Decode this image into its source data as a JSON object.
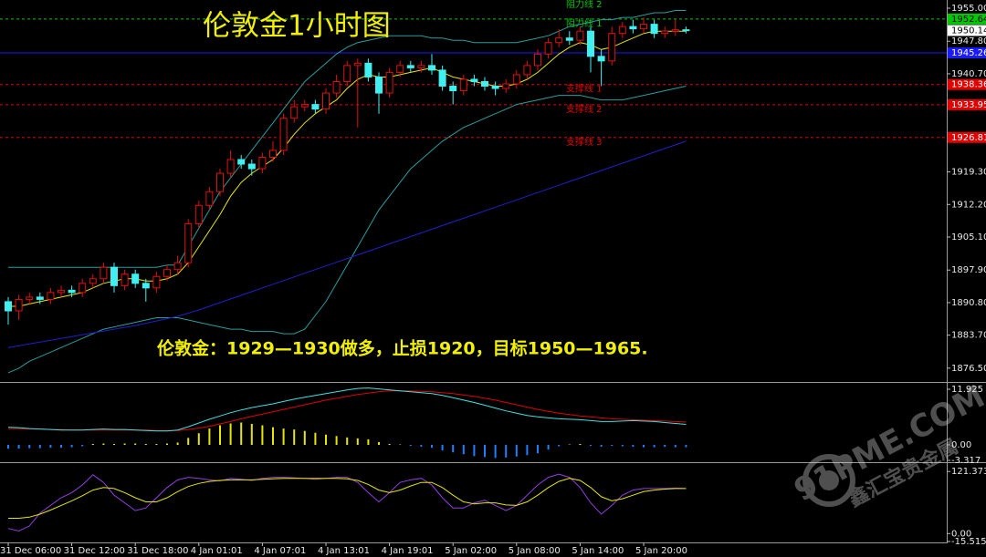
{
  "chart_data": [
    {
      "type": "candlestick",
      "title": "伦敦金1小时图",
      "annotation": "伦敦金：1929—1930做多，止损1920，目标1950—1965.",
      "categories": [
        "31 Dec 06:00",
        null,
        null,
        null,
        null,
        null,
        "31 Dec 12:00",
        null,
        null,
        null,
        null,
        null,
        "31 Dec 18:00",
        null,
        null,
        null,
        null,
        null,
        "4 Jan 01:01",
        null,
        null,
        null,
        null,
        null,
        "4 Jan 07:01",
        null,
        null,
        null,
        null,
        null,
        "4 Jan 13:01",
        null,
        null,
        null,
        null,
        null,
        "4 Jan 19:01",
        null,
        null,
        null,
        null,
        null,
        "5 Jan 02:00",
        null,
        null,
        null,
        null,
        null,
        "5 Jan 08:00",
        null,
        null,
        null,
        null,
        null,
        "5 Jan 14:00",
        null,
        null,
        null,
        null,
        null,
        "5 Jan 20:00",
        null,
        null,
        null,
        null
      ],
      "open": [
        1891,
        1889,
        1891.5,
        1892,
        1891.5,
        1893,
        1893.5,
        1893,
        1895,
        1896,
        1898.5,
        1894.5,
        1897,
        1895,
        1894,
        1896.5,
        1898,
        1899.5,
        1908,
        1912,
        1915,
        1919,
        1922,
        1921,
        1920,
        1922.5,
        1924,
        1931,
        1933.5,
        1934,
        1933,
        1936.5,
        1939,
        1942.5,
        1943,
        1940,
        1936.5,
        1941,
        1942.5,
        1942,
        1942.5,
        1941.5,
        1938,
        1937,
        1939.5,
        1939,
        1938,
        1937.5,
        1938.5,
        1940.5,
        1942.5,
        1945,
        1947.5,
        1948.5,
        1948,
        1950,
        1944.5,
        1943.5,
        1949.5,
        1951,
        1950.5,
        1951.5,
        1949.5,
        1950,
        1950.3
      ],
      "high": [
        1892,
        1892.5,
        1893,
        1893,
        1894,
        1894.5,
        1894.5,
        1896,
        1897,
        1899.5,
        1899.5,
        1898,
        1898,
        1896,
        1897.5,
        1899,
        1901,
        1909,
        1913,
        1916,
        1920,
        1924,
        1923,
        1922,
        1923.5,
        1926,
        1932,
        1935,
        1935,
        1935,
        1937.5,
        1940.5,
        1943.5,
        1944,
        1944,
        1941,
        1942,
        1943.5,
        1943.5,
        1943.5,
        1945,
        1942.5,
        1939,
        1940.5,
        1940.5,
        1940,
        1939,
        1939.5,
        1941.5,
        1943.5,
        1946,
        1948.5,
        1950.5,
        1950,
        1951,
        1951,
        1946,
        1951,
        1952,
        1952.5,
        1953,
        1952.5,
        1951,
        1952.5,
        1951
      ],
      "low": [
        1886,
        1887,
        1890.5,
        1890.5,
        1890.5,
        1892,
        1892,
        1892,
        1894,
        1895,
        1893,
        1893.5,
        1894,
        1891,
        1893,
        1895.5,
        1897,
        1898.5,
        1907,
        1911,
        1914,
        1918,
        1920,
        1918.5,
        1919,
        1921.5,
        1923,
        1930,
        1932.5,
        1932,
        1932,
        1935.5,
        1938,
        1929,
        1939,
        1932,
        1935.5,
        1940,
        1941,
        1941,
        1940.5,
        1937,
        1934,
        1936,
        1938,
        1937,
        1936,
        1936.5,
        1937.5,
        1939.5,
        1941.5,
        1944,
        1946.5,
        1947,
        1947,
        1941,
        1938,
        1942.5,
        1948.5,
        1949.5,
        1949.5,
        1948.5,
        1948.5,
        1949,
        1949.5
      ],
      "close": [
        1889,
        1891.5,
        1892,
        1891.5,
        1893,
        1893.5,
        1893,
        1895,
        1896,
        1898.5,
        1894.5,
        1897,
        1895,
        1894,
        1896.5,
        1898,
        1899.5,
        1908,
        1912,
        1915,
        1919,
        1922,
        1921,
        1920,
        1922.5,
        1924,
        1931,
        1933.5,
        1934,
        1933,
        1936.5,
        1939,
        1942.5,
        1943,
        1940,
        1936.5,
        1941,
        1942.5,
        1942,
        1942.5,
        1941.5,
        1938,
        1937,
        1939.5,
        1939,
        1938,
        1937.5,
        1938.5,
        1940.5,
        1942.5,
        1945,
        1947.5,
        1948.5,
        1948,
        1950,
        1944.5,
        1943.5,
        1949.5,
        1951,
        1950.5,
        1951.5,
        1949.5,
        1950,
        1950.3,
        1950.14
      ],
      "up_color": "#e01010",
      "down_color": "#40f0f0",
      "series": [
        {
          "color": "#2a9d9d",
          "values": [
            1898.5,
            1898.5,
            1898.5,
            1898.5,
            1898.5,
            1898.5,
            1898.5,
            1898.5,
            1898.5,
            1898.5,
            1898.5,
            1898.5,
            1898.5,
            1898.5,
            1898.5,
            1899,
            1899,
            1903,
            1907,
            1911,
            1915,
            1918,
            1921,
            1924,
            1927,
            1930,
            1933,
            1936,
            1939,
            1941,
            1943,
            1945,
            1946.5,
            1947.5,
            1948,
            1948.5,
            1949,
            1949,
            1949,
            1949,
            1948.5,
            1948.5,
            1948,
            1948,
            1947.5,
            1947.5,
            1947.5,
            1947.5,
            1947.5,
            1948,
            1948.5,
            1949,
            1950,
            1951,
            1951.5,
            1952,
            1952.5,
            1952.5,
            1953,
            1953,
            1953.5,
            1954,
            1954,
            1954.5,
            1954.5
          ]
        },
        {
          "color": "#2a9d9d",
          "values": [
            1875.5,
            1876.5,
            1878,
            1879,
            1880,
            1881,
            1882,
            1883,
            1884,
            1885,
            1885.5,
            1886,
            1886.5,
            1887,
            1887.5,
            1887.5,
            1887.5,
            1887,
            1886.5,
            1886,
            1885.5,
            1885,
            1885,
            1884.5,
            1884.5,
            1884.5,
            1884,
            1884,
            1885,
            1888,
            1891,
            1895,
            1899,
            1903,
            1907,
            1911,
            1914,
            1917,
            1920,
            1922,
            1924,
            1926,
            1927.5,
            1929,
            1930,
            1931,
            1932,
            1933,
            1934,
            1934.5,
            1935,
            1935.5,
            1936,
            1936,
            1936,
            1935.5,
            1935,
            1935,
            1935,
            1935.5,
            1936,
            1936.5,
            1937,
            1937.5,
            1938
          ]
        },
        {
          "color": "#2020c8",
          "values": [
            1881,
            1881.4,
            1881.8,
            1882.2,
            1882.6,
            1883,
            1883.4,
            1883.8,
            1884.2,
            1884.6,
            1885,
            1885.4,
            1885.8,
            1886.3,
            1886.8,
            1887.3,
            1887.8,
            1888.5,
            1889.2,
            1890,
            1890.8,
            1891.6,
            1892.4,
            1893.2,
            1894,
            1894.8,
            1895.6,
            1896.4,
            1897.2,
            1898,
            1898.8,
            1899.6,
            1900.4,
            1901.2,
            1902,
            1902.8,
            1903.6,
            1904.4,
            1905.2,
            1906,
            1906.8,
            1907.6,
            1908.4,
            1909.2,
            1910,
            1910.8,
            1911.6,
            1912.4,
            1913.2,
            1914,
            1914.8,
            1915.6,
            1916.4,
            1917.2,
            1918,
            1918.8,
            1919.6,
            1920.4,
            1921.2,
            1922,
            1922.8,
            1923.6,
            1924.4,
            1925.2,
            1926
          ]
        },
        {
          "color": "#e6e600",
          "values": [
            1890,
            1890,
            1890.5,
            1891,
            1891.5,
            1892,
            1892.5,
            1893,
            1894,
            1895,
            1895.5,
            1896,
            1896,
            1895.5,
            1895.5,
            1896,
            1897,
            1899.5,
            1903,
            1906.5,
            1910,
            1914,
            1917,
            1919,
            1920.5,
            1922,
            1924.5,
            1927.5,
            1930,
            1932,
            1933.5,
            1935,
            1937.5,
            1939.5,
            1940.5,
            1940,
            1940,
            1940.5,
            1941,
            1941.5,
            1942,
            1941,
            1940,
            1939.5,
            1939,
            1938.5,
            1938,
            1938,
            1938.5,
            1939.5,
            1941,
            1943,
            1945,
            1946.5,
            1947.5,
            1947,
            1946,
            1946.5,
            1947.5,
            1948.5,
            1949.5,
            1950,
            1950,
            1950,
            1950
          ]
        }
      ],
      "levels": [
        {
          "value": 1952.64,
          "text": "阻力线 1",
          "color": "#00c800",
          "label_color": "#000000",
          "dashed": true
        },
        {
          "value": 1945.26,
          "color": "#1a1aff",
          "label_color": "#ffffff",
          "dashed": false
        },
        {
          "value": 1938.36,
          "text": "支撑线 1",
          "color": "#e00000",
          "label_color": "#ffffff",
          "dashed": true
        },
        {
          "value": 1933.95,
          "text": "支撑线 2",
          "color": "#e00000",
          "label_color": "#ffffff",
          "dashed": true
        },
        {
          "value": 1926.81,
          "text": "支撑线 3",
          "color": "#e00000",
          "label_color": "#ffffff",
          "dashed": true
        }
      ],
      "annotations": [
        {
          "text": "阻力线 2",
          "color": "#00c800"
        }
      ],
      "ylim": [
        1873.49,
        1956.79
      ],
      "yticks": [
        {
          "value": 1955,
          "label": "1955.00"
        },
        {
          "value": 1947.8,
          "label": "1947.80"
        },
        {
          "value": 1940.7,
          "label": "1940.70"
        },
        {
          "value": 1919.3,
          "label": "1919.30"
        },
        {
          "value": 1912.2,
          "label": "1912.20"
        },
        {
          "value": 1905.1,
          "label": "1905.10"
        },
        {
          "value": 1897.9,
          "label": "1897.90"
        },
        {
          "value": 1890.8,
          "label": "1890.80"
        },
        {
          "value": 1883.7,
          "label": "1883.70"
        },
        {
          "value": 1876.5,
          "label": "1876.50"
        }
      ]
    },
    {
      "type": "macd",
      "values": [
        -0.8,
        -0.8,
        -0.7,
        -0.7,
        -0.6,
        -0.6,
        -0.5,
        -0.3,
        0.2,
        0.3,
        0.2,
        0.3,
        0.3,
        0.2,
        0.2,
        0.3,
        0.5,
        1.5,
        2.5,
        3.5,
        4.2,
        4.6,
        4.8,
        4.5,
        4.2,
        3.8,
        3.5,
        3.3,
        3.0,
        2.6,
        2.2,
        1.9,
        1.6,
        1.4,
        1.2,
        0.6,
        0.2,
        0.1,
        -0.2,
        -0.4,
        -0.6,
        -1.2,
        -1.6,
        -2.0,
        -2.4,
        -2.6,
        -2.8,
        -2.7,
        -2.5,
        -2.2,
        -1.8,
        -1.0,
        -0.3,
        0.1,
        0.2,
        -0.2,
        -0.4,
        -0.2,
        -0.3,
        -0.4,
        -0.5,
        -0.5,
        -0.4,
        -0.5,
        -0.5
      ],
      "pos_color": "#e6e600",
      "neg_color": "#2080ff",
      "series": [
        {
          "color": "#e00000",
          "values": [
            3.5,
            3.5,
            3.4,
            3.4,
            3.3,
            3.3,
            3.2,
            3.2,
            3.2,
            3.2,
            3.2,
            3.2,
            3.2,
            3.2,
            3.1,
            3.1,
            3.1,
            3.3,
            3.6,
            4.0,
            4.5,
            5.0,
            5.6,
            6.1,
            6.6,
            7.1,
            7.6,
            8.1,
            8.6,
            9.1,
            9.6,
            10.0,
            10.4,
            10.8,
            11.1,
            11.4,
            11.6,
            11.6,
            11.6,
            11.5,
            11.4,
            11.2,
            11.0,
            10.7,
            10.4,
            10.0,
            9.6,
            9.1,
            8.6,
            8.1,
            7.6,
            7.2,
            6.8,
            6.5,
            6.2,
            6.0,
            5.8,
            5.6,
            5.5,
            5.4,
            5.3,
            5.2,
            5.1,
            5.0,
            4.9
          ]
        },
        {
          "color": "#40e0e0",
          "values": [
            3.8,
            3.7,
            3.5,
            3.4,
            3.3,
            3.2,
            3.2,
            3.2,
            3.3,
            3.4,
            3.3,
            3.3,
            3.2,
            3.1,
            3.0,
            3.0,
            3.2,
            3.9,
            4.7,
            5.5,
            6.2,
            6.9,
            7.5,
            8.0,
            8.4,
            8.8,
            9.3,
            9.8,
            10.2,
            10.6,
            11.0,
            11.4,
            11.8,
            12.1,
            12.2,
            12.0,
            11.8,
            11.6,
            11.4,
            11.2,
            11.0,
            10.6,
            10.1,
            9.6,
            9.1,
            8.5,
            7.9,
            7.3,
            6.8,
            6.3,
            6.0,
            5.8,
            5.6,
            5.5,
            5.4,
            5.2,
            5.0,
            5.0,
            5.1,
            5.2,
            5.1,
            5.0,
            4.8,
            4.6,
            4.4
          ]
        }
      ],
      "ylim": [
        -3.317,
        13.1
      ],
      "yticks": [
        11.925,
        {
          "value": 0,
          "label": "0.00"
        },
        -3.317
      ]
    },
    {
      "type": "oscillator",
      "series": [
        {
          "color": "#9040e0",
          "values": [
            10,
            5,
            15,
            40,
            55,
            70,
            80,
            95,
            115,
            100,
            75,
            60,
            45,
            50,
            70,
            90,
            105,
            110,
            108,
            105,
            103,
            108,
            106,
            104,
            108,
            110,
            110,
            109,
            108,
            106,
            108,
            110,
            110,
            100,
            80,
            62,
            80,
            100,
            105,
            108,
            95,
            70,
            50,
            50,
            60,
            65,
            55,
            45,
            55,
            75,
            95,
            110,
            116,
            110,
            90,
            60,
            38,
            55,
            75,
            85,
            88,
            88,
            88,
            89,
            88
          ]
        },
        {
          "color": "#e6e600",
          "values": [
            30,
            30,
            32,
            38,
            46,
            55,
            64,
            74,
            85,
            90,
            88,
            80,
            70,
            62,
            62,
            70,
            82,
            92,
            98,
            102,
            104,
            105,
            105,
            105,
            106,
            107,
            108,
            108,
            108,
            108,
            108,
            108,
            107,
            104,
            96,
            85,
            80,
            85,
            93,
            100,
            100,
            90,
            75,
            62,
            58,
            60,
            60,
            56,
            55,
            62,
            75,
            90,
            102,
            108,
            104,
            90,
            72,
            64,
            68,
            75,
            82,
            85,
            87,
            88,
            88
          ]
        }
      ],
      "ylim": [
        -15.5155,
        136
      ],
      "yticks": [
        121.3731,
        {
          "value": 0,
          "label": "0.00"
        },
        -15.5155
      ]
    }
  ],
  "watermark": {
    "site": "91PME.COM",
    "name": "鑫汇宝贵金属"
  }
}
